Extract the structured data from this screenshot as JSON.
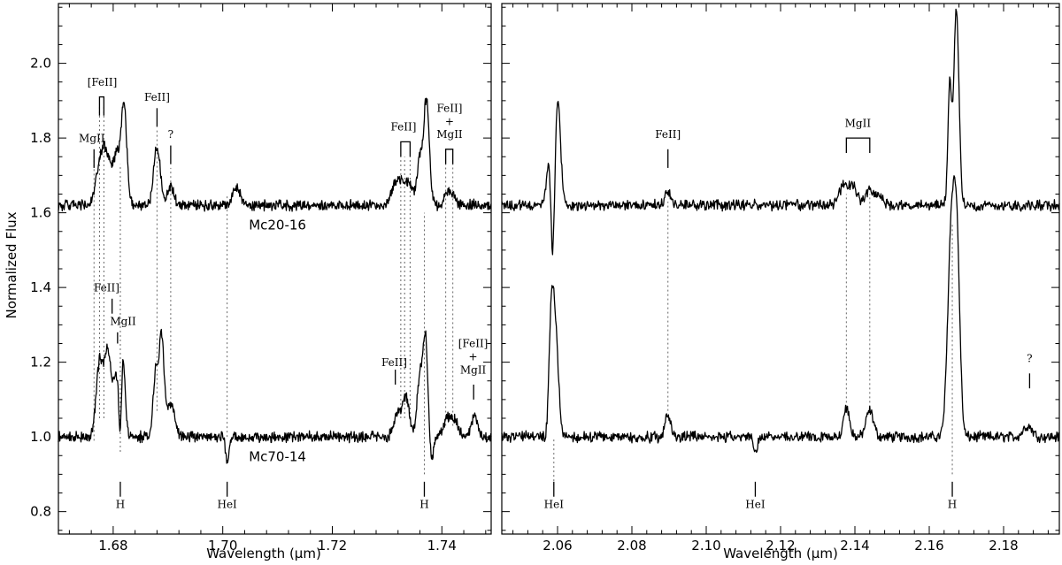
{
  "chart_data": [
    {
      "type": "line",
      "panel": "left",
      "xlabel": "Wavelength (μm)",
      "ylabel": "Normalized Flux",
      "xlim": [
        1.67,
        1.749
      ],
      "ylim": [
        0.74,
        2.16
      ],
      "xticks": [
        1.68,
        1.7,
        1.72,
        1.74
      ],
      "xtick_labels": [
        "1.68",
        "1.70",
        "1.72",
        "1.74"
      ],
      "yticks": [
        0.8,
        1.0,
        1.2,
        1.4,
        1.6,
        1.8,
        2.0
      ],
      "ytick_labels": [
        "0.8",
        "1.0",
        "1.2",
        "1.4",
        "1.6",
        "1.8",
        "2.0"
      ],
      "series": [
        {
          "name": "Mc20-16",
          "baseline": 1.62,
          "features": [
            [
              1.6777,
              0.1,
              0.0008
            ],
            [
              1.679,
              0.11,
              0.0009
            ],
            [
              1.6808,
              0.12,
              0.0006
            ],
            [
              1.682,
              0.26,
              0.0005
            ],
            [
              1.688,
              0.16,
              0.0006
            ],
            [
              1.6905,
              0.05,
              0.0006
            ],
            [
              1.7025,
              0.05,
              0.0007
            ],
            [
              1.732,
              0.07,
              0.001
            ],
            [
              1.734,
              0.05,
              0.0008
            ],
            [
              1.736,
              0.12,
              0.0005
            ],
            [
              1.7372,
              0.28,
              0.0005
            ],
            [
              1.741,
              0.03,
              0.0006
            ],
            [
              1.742,
              0.02,
              0.0006
            ]
          ]
        },
        {
          "name": "Mc70-14",
          "baseline": 1.0,
          "features": [
            [
              1.6775,
              0.2,
              0.0006
            ],
            [
              1.679,
              0.23,
              0.0006
            ],
            [
              1.6805,
              0.16,
              0.0005
            ],
            [
              1.6813,
              -0.12,
              0.0002
            ],
            [
              1.6818,
              0.2,
              0.0004
            ],
            [
              1.6877,
              0.16,
              0.0004
            ],
            [
              1.6888,
              0.27,
              0.0005
            ],
            [
              1.6905,
              0.09,
              0.0007
            ],
            [
              1.7008,
              -0.07,
              0.0003
            ],
            [
              1.732,
              0.06,
              0.0007
            ],
            [
              1.7335,
              0.1,
              0.0006
            ],
            [
              1.736,
              0.17,
              0.0005
            ],
            [
              1.737,
              0.26,
              0.0004
            ],
            [
              1.7382,
              -0.06,
              0.0003
            ],
            [
              1.741,
              0.05,
              0.0007
            ],
            [
              1.7425,
              0.04,
              0.0006
            ],
            [
              1.746,
              0.06,
              0.0005
            ]
          ]
        }
      ],
      "series_labels": [
        {
          "text": "Mc20-16",
          "x": 1.71,
          "y": 1.555
        },
        {
          "text": "Mc70-14",
          "x": 1.71,
          "y": 0.935
        }
      ],
      "dotted_lines": [
        {
          "x": 1.6765,
          "y1": 0.99,
          "y2": 1.75
        },
        {
          "x": 1.6775,
          "y1": 1.05,
          "y2": 1.89
        },
        {
          "x": 1.6783,
          "y1": 1.05,
          "y2": 1.89
        },
        {
          "x": 1.6813,
          "y1": 0.96,
          "y2": 1.73
        },
        {
          "x": 1.688,
          "y1": 1.07,
          "y2": 1.82
        },
        {
          "x": 1.6905,
          "y1": 1.09,
          "y2": 1.72
        },
        {
          "x": 1.7008,
          "y1": 1.0,
          "y2": 1.65
        },
        {
          "x": 1.7325,
          "y1": 1.05,
          "y2": 1.75
        },
        {
          "x": 1.7332,
          "y1": 1.05,
          "y2": 1.75
        },
        {
          "x": 1.7342,
          "y1": 1.05,
          "y2": 1.75
        },
        {
          "x": 1.7368,
          "y1": 0.9,
          "y2": 1.6
        },
        {
          "x": 1.7407,
          "y1": 1.03,
          "y2": 1.73
        },
        {
          "x": 1.742,
          "y1": 1.03,
          "y2": 1.73
        }
      ],
      "brackets": [
        {
          "x1": 1.6775,
          "x2": 1.6783,
          "y": 1.91,
          "down": 0.05
        },
        {
          "x1": 1.7325,
          "x2": 1.7342,
          "y": 1.79,
          "down": 0.04
        },
        {
          "x1": 1.7407,
          "x2": 1.742,
          "y": 1.77,
          "down": 0.04
        }
      ],
      "line_marks": [
        {
          "x": 1.6765,
          "y1": 1.72,
          "y2": 1.77
        },
        {
          "x": 1.688,
          "y1": 1.83,
          "y2": 1.88
        },
        {
          "x": 1.6905,
          "y1": 1.73,
          "y2": 1.78
        },
        {
          "x": 1.6813,
          "y1": 0.84,
          "y2": 0.88
        },
        {
          "x": 1.7008,
          "y1": 0.84,
          "y2": 0.88
        },
        {
          "x": 1.7368,
          "y1": 0.84,
          "y2": 0.88
        },
        {
          "x": 1.6798,
          "y1": 1.33,
          "y2": 1.37
        },
        {
          "x": 1.6808,
          "y1": 1.25,
          "y2": 1.28
        },
        {
          "x": 1.7315,
          "y1": 1.14,
          "y2": 1.18
        },
        {
          "x": 1.7458,
          "y1": 1.1,
          "y2": 1.14
        }
      ],
      "labels": [
        {
          "text": "MgII",
          "x": 1.6761,
          "y": 1.79
        },
        {
          "text": "[FeII]",
          "x": 1.678,
          "y": 1.94
        },
        {
          "text": "FeII]",
          "x": 1.688,
          "y": 1.9
        },
        {
          "text": "?",
          "x": 1.6905,
          "y": 1.8
        },
        {
          "text": "FeII]",
          "x": 1.733,
          "y": 1.82
        },
        {
          "text": "FeII]",
          "x": 1.7414,
          "y": 1.87
        },
        {
          "text": "+",
          "x": 1.7414,
          "y": 1.835
        },
        {
          "text": "MgII",
          "x": 1.7414,
          "y": 1.8
        },
        {
          "text": "FeII]",
          "x": 1.6788,
          "y": 1.39
        },
        {
          "text": "MgII",
          "x": 1.6818,
          "y": 1.3
        },
        {
          "text": "FeII]",
          "x": 1.7313,
          "y": 1.19
        },
        {
          "text": "[FeII]",
          "x": 1.7457,
          "y": 1.24
        },
        {
          "text": "+",
          "x": 1.7457,
          "y": 1.205
        },
        {
          "text": "MgII",
          "x": 1.7457,
          "y": 1.17
        },
        {
          "text": "H",
          "x": 1.6813,
          "y": 0.81
        },
        {
          "text": "HeI",
          "x": 1.7008,
          "y": 0.81
        },
        {
          "text": "H",
          "x": 1.7368,
          "y": 0.81
        }
      ]
    },
    {
      "type": "line",
      "panel": "right",
      "xlabel": "Wavelength (μm)",
      "xlim": [
        2.045,
        2.195
      ],
      "ylim": [
        0.74,
        2.16
      ],
      "xticks": [
        2.06,
        2.08,
        2.1,
        2.12,
        2.14,
        2.16,
        2.18
      ],
      "xtick_labels": [
        "2.06",
        "2.08",
        "2.10",
        "2.12",
        "2.14",
        "2.16",
        "2.18"
      ],
      "yticks": [
        0.8,
        1.0,
        1.2,
        1.4,
        1.6,
        1.8,
        2.0
      ],
      "series": [
        {
          "name": "Mc20-16",
          "baseline": 1.62,
          "features": [
            [
              2.0578,
              0.13,
              0.0007
            ],
            [
              2.0587,
              -0.25,
              0.0005
            ],
            [
              2.06,
              0.28,
              0.0008
            ],
            [
              2.0897,
              0.04,
              0.0007
            ],
            [
              2.137,
              0.05,
              0.0012
            ],
            [
              2.1395,
              0.05,
              0.001
            ],
            [
              2.144,
              0.04,
              0.0012
            ],
            [
              2.1465,
              0.02,
              0.001
            ],
            [
              2.1655,
              0.32,
              0.0005
            ],
            [
              2.1673,
              0.52,
              0.0007
            ]
          ]
        },
        {
          "name": "Mc70-14",
          "baseline": 1.0,
          "features": [
            [
              2.0583,
              0.3,
              0.0007
            ],
            [
              2.0573,
              -0.04,
              0.0005
            ],
            [
              2.0595,
              0.25,
              0.0008
            ],
            [
              2.0897,
              0.06,
              0.0008
            ],
            [
              2.1132,
              -0.04,
              0.0005
            ],
            [
              2.1377,
              0.08,
              0.0008
            ],
            [
              2.144,
              0.07,
              0.001
            ],
            [
              2.166,
              0.56,
              0.001
            ],
            [
              2.1675,
              0.42,
              0.0008
            ],
            [
              2.1865,
              0.03,
              0.0012
            ]
          ]
        }
      ],
      "dotted_lines": [
        {
          "x": 2.059,
          "y1": 0.87,
          "y2": 1.0
        },
        {
          "x": 2.0897,
          "y1": 1.07,
          "y2": 1.63
        },
        {
          "x": 2.1377,
          "y1": 1.08,
          "y2": 1.65
        },
        {
          "x": 2.144,
          "y1": 1.08,
          "y2": 1.65
        },
        {
          "x": 2.1662,
          "y1": 0.9,
          "y2": 1.57
        }
      ],
      "brackets": [
        {
          "x1": 2.1377,
          "x2": 2.144,
          "y": 1.8,
          "down": 0.04
        }
      ],
      "line_marks": [
        {
          "x": 2.0897,
          "y1": 1.72,
          "y2": 1.77
        },
        {
          "x": 2.059,
          "y1": 0.84,
          "y2": 0.88
        },
        {
          "x": 2.1132,
          "y1": 0.84,
          "y2": 0.88
        },
        {
          "x": 2.1662,
          "y1": 0.84,
          "y2": 0.88
        },
        {
          "x": 2.187,
          "y1": 1.13,
          "y2": 1.17
        }
      ],
      "labels": [
        {
          "text": "FeII]",
          "x": 2.0897,
          "y": 1.8
        },
        {
          "text": "MgII",
          "x": 2.1408,
          "y": 1.83
        },
        {
          "text": "?",
          "x": 2.187,
          "y": 1.2
        },
        {
          "text": "HeI",
          "x": 2.059,
          "y": 0.81
        },
        {
          "text": "HeI",
          "x": 2.1132,
          "y": 0.81
        },
        {
          "text": "H",
          "x": 2.1662,
          "y": 0.81
        }
      ]
    }
  ]
}
